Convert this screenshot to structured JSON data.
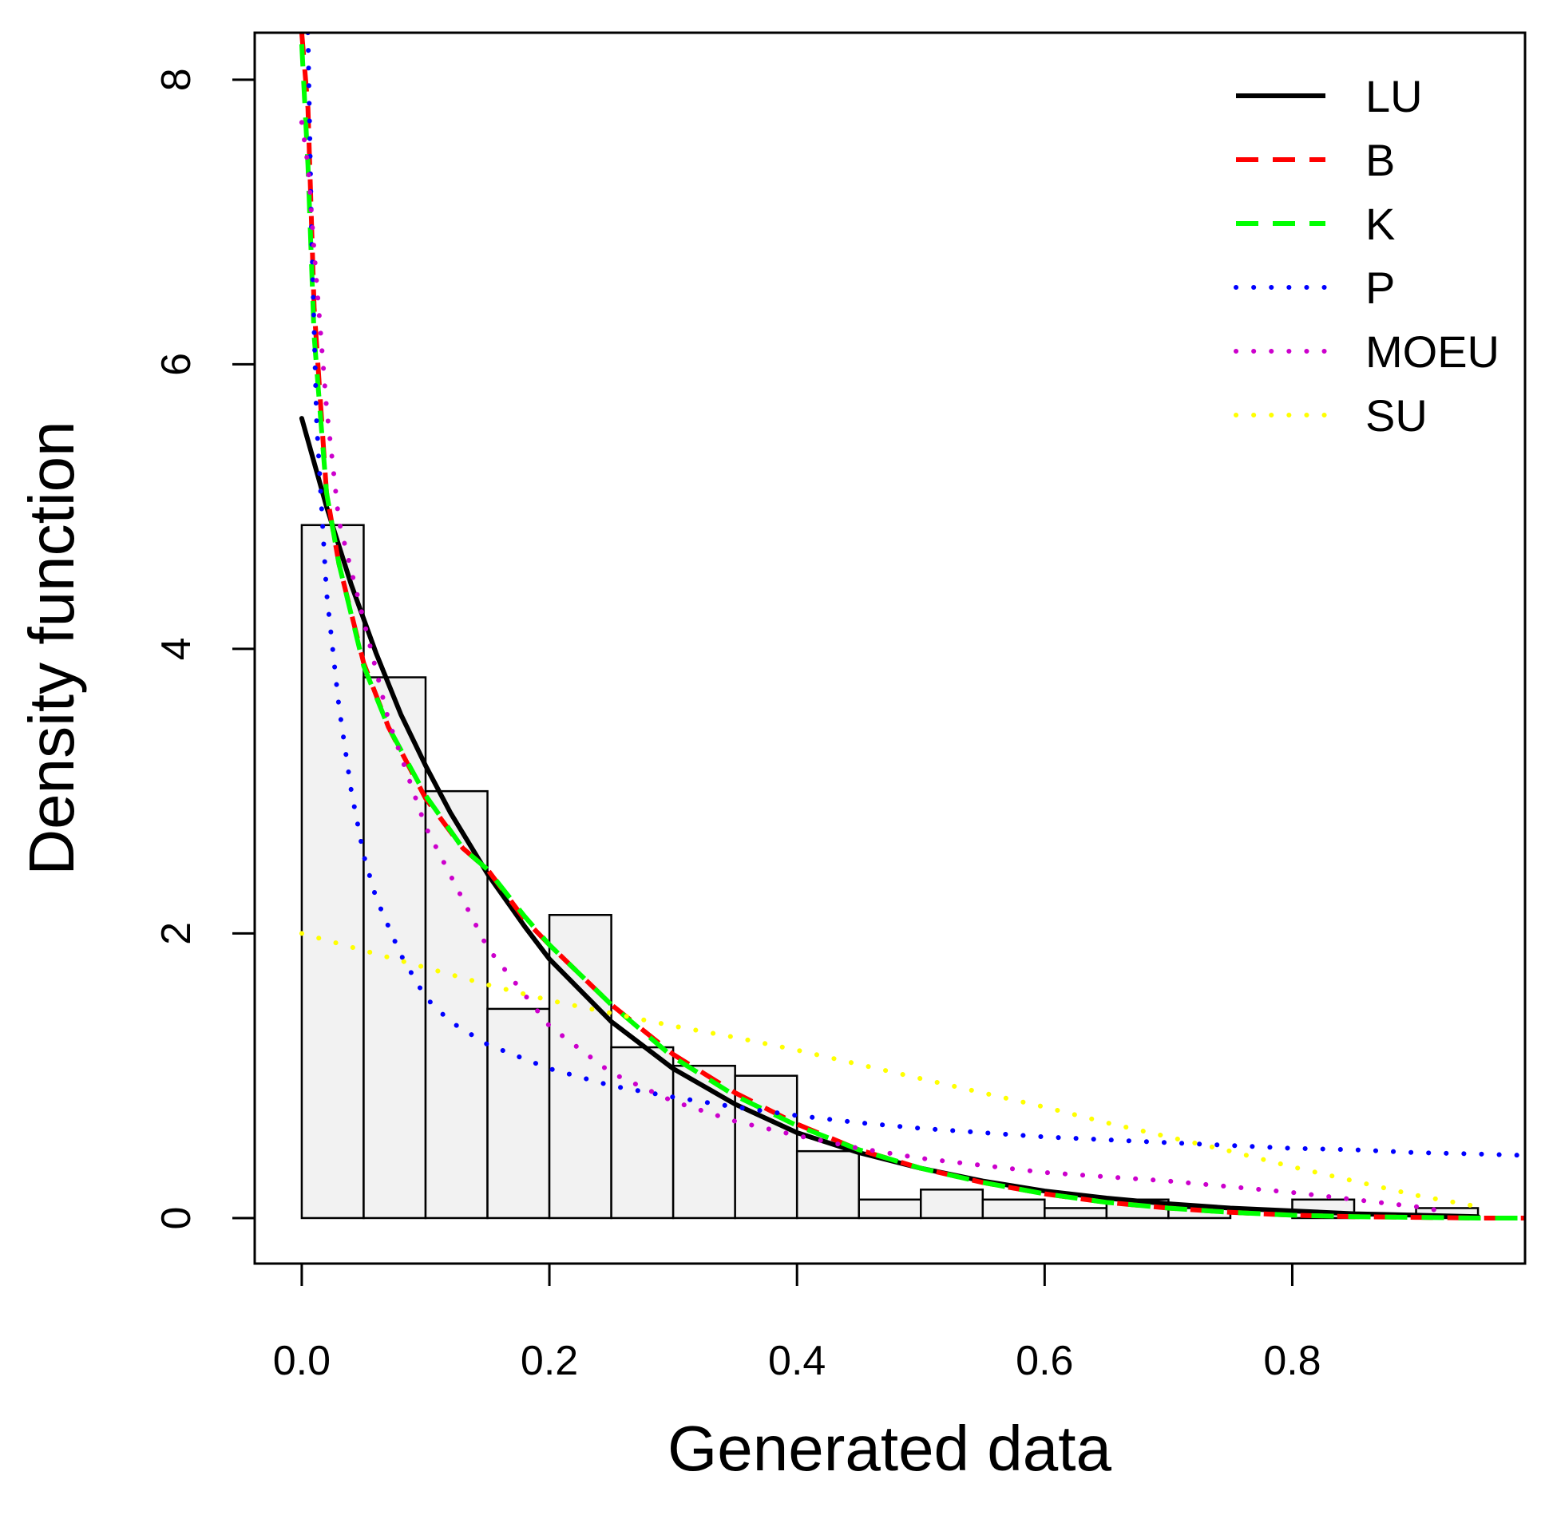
{
  "chart_data": {
    "type": "histogram",
    "title": "",
    "xlabel": "Generated data",
    "ylabel": "Density function",
    "xlim": [
      -0.038,
      0.988
    ],
    "ylim": [
      -0.32,
      8.33
    ],
    "x_ticks": [
      0.0,
      0.2,
      0.4,
      0.6,
      0.8
    ],
    "x_tick_labels": [
      "0.0",
      "0.2",
      "0.4",
      "0.6",
      "0.8"
    ],
    "y_ticks": [
      0,
      2,
      4,
      6,
      8
    ],
    "y_tick_labels": [
      "0",
      "2",
      "4",
      "6",
      "8"
    ],
    "grid": false,
    "legend_position": "top-right",
    "histogram": {
      "bin_width": 0.05,
      "bin_starts": [
        0.0,
        0.05,
        0.1,
        0.15,
        0.2,
        0.25,
        0.3,
        0.35,
        0.4,
        0.45,
        0.5,
        0.55,
        0.6,
        0.65,
        0.7,
        0.75,
        0.8,
        0.85,
        0.9
      ],
      "densities": [
        4.87,
        3.8,
        3.0,
        1.47,
        2.13,
        1.2,
        1.07,
        1.0,
        0.47,
        0.13,
        0.2,
        0.13,
        0.07,
        0.13,
        0.07,
        0.0,
        0.13,
        0.0,
        0.07
      ],
      "fill_color": "#f2f2f2",
      "edge_color": "#000000"
    },
    "series": [
      {
        "name": "LU",
        "color": "#000000",
        "style": "solid",
        "x": [
          0.0,
          0.02,
          0.04,
          0.06,
          0.08,
          0.1,
          0.12,
          0.15,
          0.18,
          0.2,
          0.25,
          0.3,
          0.35,
          0.4,
          0.45,
          0.5,
          0.55,
          0.6,
          0.65,
          0.7,
          0.75,
          0.8,
          0.85,
          0.9,
          0.95
        ],
        "y": [
          5.62,
          5.0,
          4.45,
          3.97,
          3.54,
          3.18,
          2.85,
          2.42,
          2.05,
          1.82,
          1.38,
          1.05,
          0.8,
          0.6,
          0.46,
          0.35,
          0.26,
          0.19,
          0.14,
          0.1,
          0.07,
          0.05,
          0.03,
          0.02,
          0.01
        ]
      },
      {
        "name": "B",
        "color": "#ff0000",
        "style": "dashed",
        "x": [
          0.0,
          0.005,
          0.01,
          0.02,
          0.03,
          0.05,
          0.07,
          0.1,
          0.13,
          0.15,
          0.18,
          0.2,
          0.25,
          0.3,
          0.35,
          0.4,
          0.45,
          0.5,
          0.55,
          0.6,
          0.65,
          0.7,
          0.75,
          0.8,
          0.85,
          0.9,
          0.95,
          0.988
        ],
        "y": [
          8.33,
          7.8,
          6.4,
          5.1,
          4.6,
          3.9,
          3.45,
          2.95,
          2.6,
          2.45,
          2.1,
          1.92,
          1.5,
          1.15,
          0.88,
          0.66,
          0.48,
          0.35,
          0.25,
          0.17,
          0.11,
          0.07,
          0.04,
          0.02,
          0.01,
          0.005,
          0.0,
          0.0
        ]
      },
      {
        "name": "K",
        "color": "#00ff00",
        "style": "dashed",
        "x": [
          0.0,
          0.005,
          0.01,
          0.02,
          0.03,
          0.05,
          0.07,
          0.1,
          0.13,
          0.15,
          0.18,
          0.2,
          0.25,
          0.3,
          0.35,
          0.4,
          0.45,
          0.5,
          0.55,
          0.6,
          0.65,
          0.7,
          0.75,
          0.8,
          0.85,
          0.9,
          0.95,
          0.988
        ],
        "y": [
          8.25,
          7.4,
          6.2,
          5.1,
          4.6,
          3.88,
          3.45,
          2.97,
          2.6,
          2.45,
          2.12,
          1.92,
          1.5,
          1.13,
          0.86,
          0.65,
          0.48,
          0.35,
          0.25,
          0.17,
          0.11,
          0.07,
          0.04,
          0.02,
          0.01,
          0.005,
          0.0,
          0.0
        ]
      },
      {
        "name": "P",
        "color": "#0000ff",
        "style": "dotted",
        "x": [
          0.005,
          0.008,
          0.012,
          0.02,
          0.03,
          0.04,
          0.05,
          0.06,
          0.08,
          0.1,
          0.12,
          0.15,
          0.2,
          0.25,
          0.3,
          0.35,
          0.4,
          0.45,
          0.5,
          0.55,
          0.6,
          0.65,
          0.7,
          0.75,
          0.8,
          0.85,
          0.9,
          0.95,
          0.988
        ],
        "y": [
          8.33,
          6.9,
          5.6,
          4.4,
          3.6,
          3.0,
          2.55,
          2.25,
          1.85,
          1.55,
          1.38,
          1.22,
          1.05,
          0.93,
          0.85,
          0.78,
          0.72,
          0.67,
          0.63,
          0.6,
          0.57,
          0.55,
          0.53,
          0.51,
          0.49,
          0.48,
          0.46,
          0.45,
          0.44
        ]
      },
      {
        "name": "MOEU",
        "color": "#cc00cc",
        "style": "dotted",
        "x": [
          0.0,
          0.005,
          0.01,
          0.02,
          0.03,
          0.05,
          0.07,
          0.1,
          0.15,
          0.2,
          0.25,
          0.3,
          0.35,
          0.4,
          0.45,
          0.5,
          0.55,
          0.6,
          0.65,
          0.7,
          0.75,
          0.8,
          0.85,
          0.9,
          0.92
        ],
        "y": [
          7.7,
          7.4,
          6.8,
          5.7,
          4.9,
          4.2,
          3.5,
          2.75,
          1.9,
          1.35,
          1.02,
          0.82,
          0.68,
          0.58,
          0.49,
          0.42,
          0.37,
          0.32,
          0.29,
          0.26,
          0.22,
          0.18,
          0.13,
          0.08,
          0.05
        ]
      },
      {
        "name": "SU",
        "color": "#ffff00",
        "style": "dotted",
        "x": [
          0.0,
          0.05,
          0.1,
          0.15,
          0.2,
          0.25,
          0.3,
          0.35,
          0.4,
          0.45,
          0.5,
          0.55,
          0.6,
          0.65,
          0.7,
          0.75,
          0.8,
          0.85,
          0.9,
          0.95
        ],
        "y": [
          2.0,
          1.88,
          1.76,
          1.64,
          1.53,
          1.44,
          1.35,
          1.27,
          1.18,
          1.08,
          0.98,
          0.88,
          0.78,
          0.67,
          0.57,
          0.47,
          0.36,
          0.26,
          0.16,
          0.08
        ]
      }
    ]
  }
}
